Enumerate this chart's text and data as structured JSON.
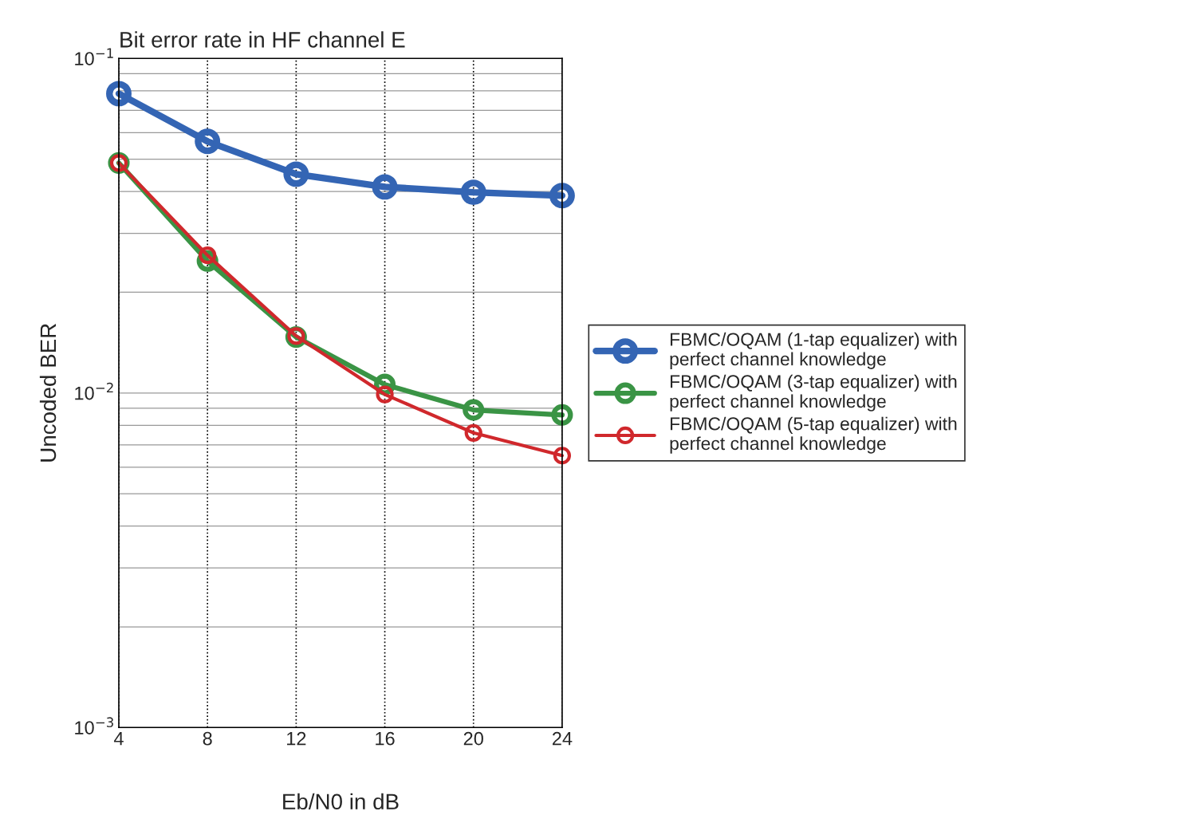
{
  "chart_data": {
    "type": "line",
    "title": "Bit error rate in HF channel E",
    "xlabel": "Eb/N0 in dB",
    "ylabel": "Uncoded BER",
    "x": [
      4,
      8,
      12,
      16,
      20,
      24
    ],
    "series": [
      {
        "name": "FBMC/OQAM (1-tap equalizer) with\nperfect channel knowledge",
        "color": "#3465b4",
        "values": [
          0.0785,
          0.0565,
          0.0451,
          0.0413,
          0.0398,
          0.0389
        ]
      },
      {
        "name": "FBMC/OQAM (3-tap equalizer) with\nperfect channel knowledge",
        "color": "#3a9445",
        "values": [
          0.0487,
          0.0248,
          0.0147,
          0.0106,
          0.0089,
          0.0086
        ]
      },
      {
        "name": "FBMC/OQAM (5-tap equalizer) with\nperfect channel knowledge",
        "color": "#d0282c",
        "values": [
          0.0487,
          0.0258,
          0.0148,
          0.0099,
          0.0076,
          0.0065
        ]
      }
    ],
    "log": "y",
    "xlim": [
      4,
      24
    ],
    "ylim": [
      0.001,
      0.1
    ],
    "xticks": [
      4,
      8,
      12,
      16,
      20,
      24
    ],
    "yticks": [
      {
        "value": 0.001,
        "label": "10$^{−3}$"
      },
      {
        "value": 0.01,
        "label": "10$^{−2}$"
      },
      {
        "value": 0.1,
        "label": "10$^{−1}$"
      }
    ],
    "grid": true,
    "legend": "right",
    "marker": "circle",
    "line_style": "solid"
  }
}
